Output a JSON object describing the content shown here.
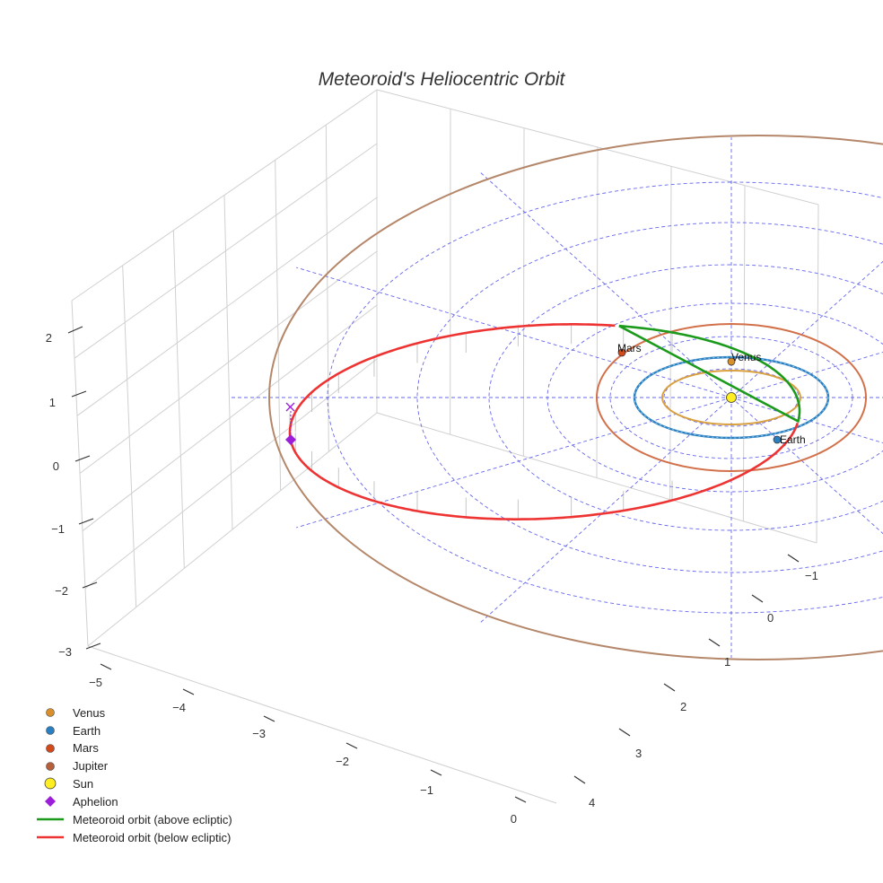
{
  "chart_data": {
    "type": "scatter3d",
    "title": "Meteoroid's Heliocentric Orbit",
    "axes": {
      "x": {
        "ticks": [
          "−5",
          "−4",
          "−3",
          "−2",
          "−1",
          "0"
        ]
      },
      "y": {
        "ticks": [
          "−1",
          "0",
          "1",
          "2",
          "3",
          "4"
        ]
      },
      "z": {
        "ticks": [
          "2",
          "1",
          "0",
          "−1",
          "−2",
          "−3"
        ]
      }
    },
    "planets": [
      {
        "name": "Venus",
        "label": "Venus",
        "color": "#d98f2b",
        "orbit_color": "#d9a040",
        "orbit_radius_au": 0.72
      },
      {
        "name": "Earth",
        "label": "Earth",
        "color": "#2a7fc1",
        "orbit_color": "#2a7fc1",
        "orbit_radius_au": 1.0
      },
      {
        "name": "Mars",
        "label": "Mars",
        "color": "#d24a1a",
        "orbit_color": "#d2704a",
        "orbit_radius_au": 1.52
      },
      {
        "name": "Jupiter",
        "label": "",
        "color": "#b5603a",
        "orbit_color": "#b5876a",
        "orbit_radius_au": 5.2
      }
    ],
    "sun": {
      "name": "Sun",
      "color": "#ffee22"
    },
    "aphelion": {
      "name": "Aphelion",
      "color": "#9b1ed8"
    },
    "legend": [
      {
        "label": "Venus",
        "marker": "circle",
        "color": "#d98f2b"
      },
      {
        "label": "Earth",
        "marker": "circle",
        "color": "#2a7fc1"
      },
      {
        "label": "Mars",
        "marker": "circle",
        "color": "#d24a1a"
      },
      {
        "label": "Jupiter",
        "marker": "circle",
        "color": "#b5603a"
      },
      {
        "label": "Sun",
        "marker": "circle",
        "color": "#ffee22"
      },
      {
        "label": "Aphelion",
        "marker": "diamond",
        "color": "#9b1ed8"
      },
      {
        "label": "Meteoroid orbit (above ecliptic)",
        "marker": "line",
        "color": "#1c9a1c"
      },
      {
        "label": "Meteoroid orbit (below ecliptic)",
        "marker": "line",
        "color": "#ee3333"
      }
    ],
    "meteoroid_orbit": {
      "above_color": "#1c9a1c",
      "below_color": "#ee3333"
    },
    "grid_color": "#6666ee"
  }
}
